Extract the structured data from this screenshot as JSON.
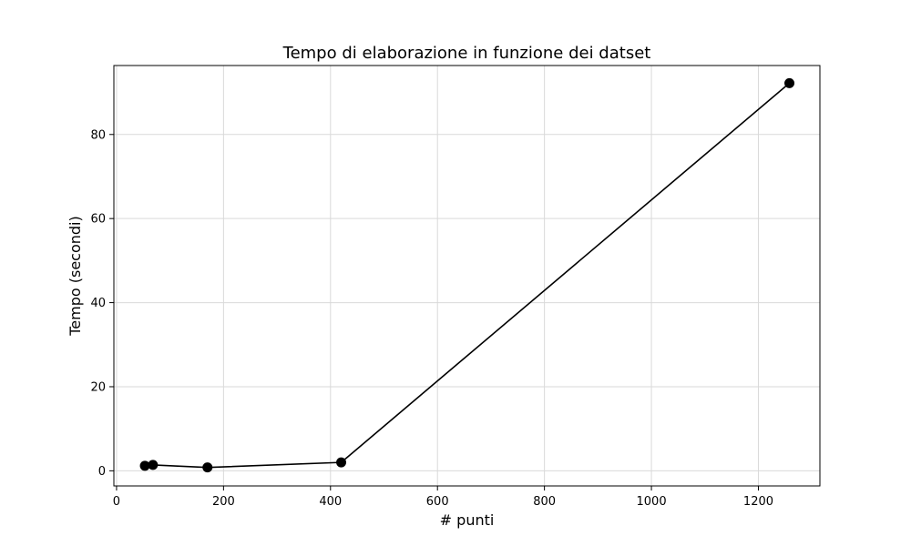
{
  "chart_data": {
    "type": "line",
    "title": "Tempo di elaborazione in funzione dei datset",
    "xlabel": "# punti",
    "ylabel": "Tempo (secondi)",
    "xlim": [
      -5,
      1315
    ],
    "ylim": [
      -3.6,
      96.4
    ],
    "xticks": [
      0,
      200,
      400,
      600,
      800,
      1000,
      1200
    ],
    "yticks": [
      0,
      20,
      40,
      60,
      80
    ],
    "grid": true,
    "legend": "none",
    "series": [
      {
        "color": "#000000",
        "marker": "circle",
        "x": [
          53,
          68,
          170,
          420,
          1258
        ],
        "y": [
          1.2,
          1.4,
          0.8,
          2.0,
          92.2
        ]
      }
    ]
  }
}
